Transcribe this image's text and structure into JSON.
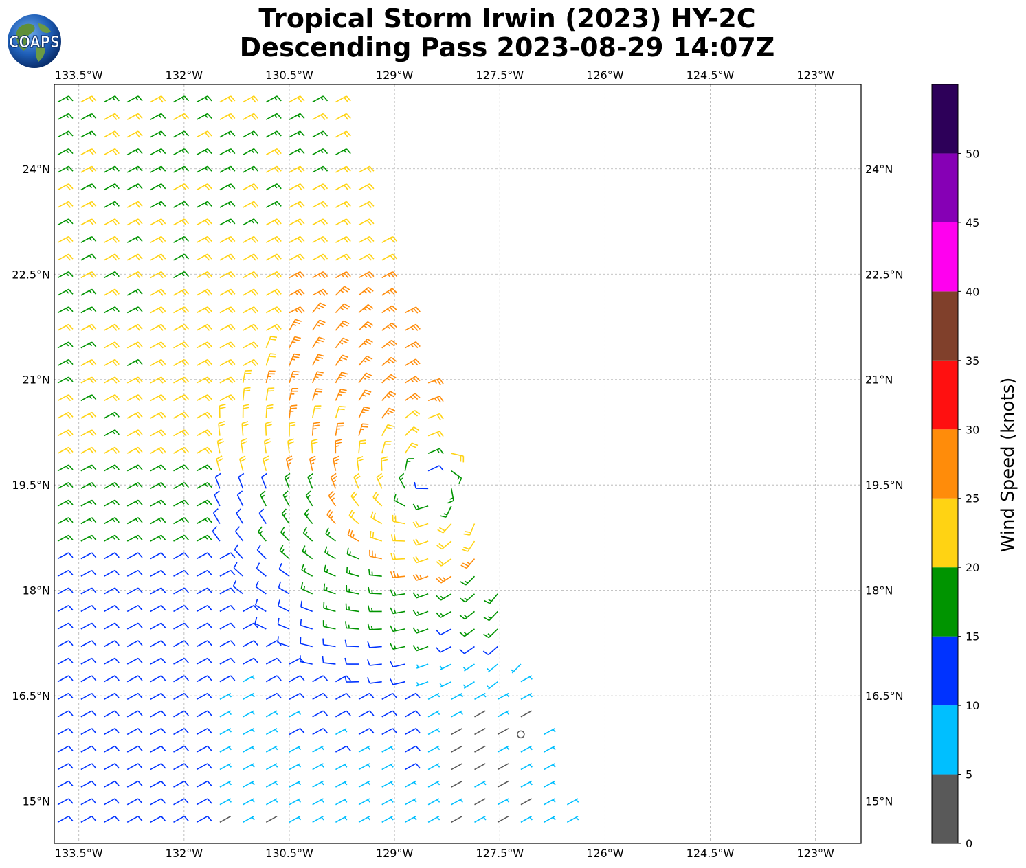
{
  "title": {
    "line1": "Tropical Storm Irwin (2023) HY-2C",
    "line2": "Descending Pass 2023-08-29 14:07Z"
  },
  "logo": {
    "text": "COAPS",
    "icon": "globe-logo-icon"
  },
  "map": {
    "lon_range": [
      -133.85,
      -122.35
    ],
    "lat_range": [
      14.4,
      25.2
    ],
    "lon_ticks": [
      {
        "value": -133.5,
        "label": "133.5°W"
      },
      {
        "value": -132.0,
        "label": "132°W"
      },
      {
        "value": -130.5,
        "label": "130.5°W"
      },
      {
        "value": -129.0,
        "label": "129°W"
      },
      {
        "value": -127.5,
        "label": "127.5°W"
      },
      {
        "value": -126.0,
        "label": "126°W"
      },
      {
        "value": -124.5,
        "label": "124.5°W"
      },
      {
        "value": -123.0,
        "label": "123°W"
      }
    ],
    "lat_ticks": [
      {
        "value": 24.0,
        "label": "24°N"
      },
      {
        "value": 22.5,
        "label": "22.5°N"
      },
      {
        "value": 21.0,
        "label": "21°N"
      },
      {
        "value": 19.5,
        "label": "19.5°N"
      },
      {
        "value": 18.0,
        "label": "18°N"
      },
      {
        "value": 16.5,
        "label": "16.5°N"
      },
      {
        "value": 15.0,
        "label": "15°N"
      }
    ],
    "grid": true,
    "storm_center": {
      "lon": -128.5,
      "lat": 19.5
    },
    "swath": {
      "west_lon": -133.9,
      "east_top_lon": -129.9,
      "east_bottom_lon": -126.3
    }
  },
  "colorbar": {
    "label": "Wind Speed (knots)",
    "range": [
      0,
      55
    ],
    "bands": [
      {
        "from": 0,
        "to": 5,
        "color": "#595959"
      },
      {
        "from": 5,
        "to": 10,
        "color": "#00bfff"
      },
      {
        "from": 10,
        "to": 15,
        "color": "#0033ff"
      },
      {
        "from": 15,
        "to": 20,
        "color": "#009400"
      },
      {
        "from": 20,
        "to": 25,
        "color": "#ffd313"
      },
      {
        "from": 25,
        "to": 30,
        "color": "#ff8c0a"
      },
      {
        "from": 30,
        "to": 35,
        "color": "#ff1010"
      },
      {
        "from": 35,
        "to": 40,
        "color": "#80402b"
      },
      {
        "from": 40,
        "to": 45,
        "color": "#ff00ef"
      },
      {
        "from": 45,
        "to": 50,
        "color": "#8600b5"
      },
      {
        "from": 50,
        "to": 55,
        "color": "#2d0059"
      }
    ],
    "ticks": [
      {
        "value": 0,
        "label": "0"
      },
      {
        "value": 5,
        "label": "5"
      },
      {
        "value": 10,
        "label": "10"
      },
      {
        "value": 15,
        "label": "15"
      },
      {
        "value": 20,
        "label": "20"
      },
      {
        "value": 25,
        "label": "25"
      },
      {
        "value": 30,
        "label": "30"
      },
      {
        "value": 35,
        "label": "35"
      },
      {
        "value": 40,
        "label": "40"
      },
      {
        "value": 45,
        "label": "45"
      },
      {
        "value": 50,
        "label": "50"
      }
    ]
  }
}
